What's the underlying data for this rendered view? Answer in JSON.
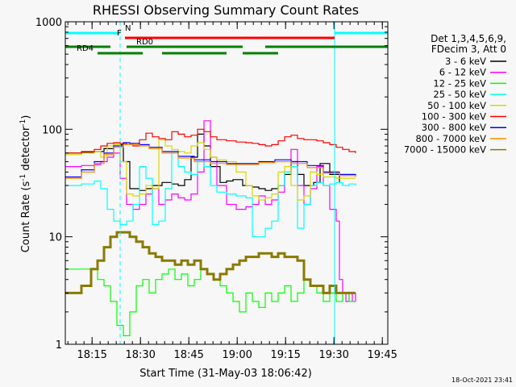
{
  "chart_data": {
    "type": "line",
    "title": "RHESSI Observing Summary Count Rates",
    "xlabel": "Start Time (31-May-03 18:06:42)",
    "ylabel": "Count Rate (s",
    "ylabel_sup": "-1",
    "ylabel_tail": " detector",
    "ylabel_close": ")",
    "y_scale": "log",
    "ylim": [
      1,
      1000
    ],
    "xlim_minutes": [
      0,
      100
    ],
    "y_ticks": [
      {
        "value": 1,
        "label": "1"
      },
      {
        "value": 10,
        "label": "10"
      },
      {
        "value": 100,
        "label": "100"
      },
      {
        "value": 1000,
        "label": "1000"
      }
    ],
    "x_ticks": [
      {
        "minute": 8.3,
        "label": "18:15"
      },
      {
        "minute": 23.3,
        "label": "18:30"
      },
      {
        "minute": 38.3,
        "label": "18:45"
      },
      {
        "minute": 53.3,
        "label": "19:00"
      },
      {
        "minute": 68.3,
        "label": "19:15"
      },
      {
        "minute": 83.3,
        "label": "19:30"
      },
      {
        "minute": 98.3,
        "label": "19:45"
      }
    ],
    "legend_header": [
      "Det 1,3,4,5,6,9,",
      "FDecim 3, Att 0"
    ],
    "legend_position": "right",
    "series": [
      {
        "name": "3 - 6 keV",
        "color": "#000000",
        "x": [
          0,
          5,
          9,
          12,
          15,
          18,
          20,
          23,
          25,
          27,
          30,
          33,
          35,
          37,
          39,
          41,
          43,
          45,
          48,
          50,
          52,
          55,
          58,
          60,
          62,
          64,
          66,
          68,
          70,
          72,
          74,
          77,
          79,
          82,
          85
        ],
        "y": [
          60,
          61,
          62,
          66,
          72,
          50,
          28,
          27,
          28,
          30,
          32,
          31,
          30,
          34,
          55,
          90,
          70,
          45,
          32,
          33,
          34,
          30,
          29,
          28,
          27,
          28,
          30,
          38,
          50,
          38,
          30,
          32,
          48,
          38,
          32
        ]
      },
      {
        "name": "6 - 12 keV",
        "color": "#ff00ff",
        "x": [
          0,
          5,
          9,
          11,
          13,
          15,
          17,
          19,
          21,
          23,
          25,
          27,
          29,
          31,
          33,
          35,
          37,
          39,
          41,
          43,
          45,
          47,
          50,
          53,
          56,
          58,
          60,
          62,
          64,
          66,
          68,
          70,
          72,
          74,
          76,
          78,
          80,
          82,
          84,
          85,
          86,
          87,
          88,
          89,
          90
        ],
        "y": [
          45,
          46,
          47,
          50,
          55,
          60,
          35,
          20,
          18,
          20,
          25,
          28,
          20,
          22,
          25,
          23,
          22,
          25,
          40,
          120,
          55,
          30,
          20,
          18,
          19,
          20,
          24,
          20,
          22,
          26,
          40,
          65,
          30,
          20,
          28,
          45,
          30,
          18,
          14,
          4,
          3,
          2.5,
          3,
          2.5,
          3
        ]
      },
      {
        "name": "12 - 25 keV",
        "color": "#00ff00",
        "x": [
          0,
          5,
          10,
          12,
          14,
          16,
          18,
          20,
          22,
          24,
          26,
          28,
          30,
          32,
          34,
          36,
          38,
          40,
          42,
          44,
          46,
          48,
          50,
          52,
          54,
          56,
          58,
          60,
          62,
          64,
          66,
          68,
          70,
          72,
          74,
          76,
          78,
          80,
          82,
          84,
          86,
          88,
          90
        ],
        "y": [
          5,
          5,
          4,
          3.5,
          2.5,
          1.5,
          1.2,
          2,
          3.5,
          4,
          3,
          4,
          4.5,
          5,
          4,
          4.5,
          3.5,
          4,
          5,
          4.5,
          4,
          3.5,
          3,
          2.5,
          2,
          3,
          2.5,
          2.2,
          3,
          2.5,
          3,
          3.5,
          2.5,
          3,
          4,
          3.5,
          3,
          2.5,
          3,
          2.5,
          3,
          2.5,
          2.5
        ]
      },
      {
        "name": "25 - 50 keV",
        "color": "#00ffff",
        "x": [
          0,
          5,
          9,
          11,
          13,
          15,
          17,
          19,
          21,
          23,
          25,
          27,
          29,
          31,
          33,
          35,
          37,
          39,
          41,
          43,
          45,
          47,
          50,
          53,
          56,
          58,
          60,
          62,
          64,
          66,
          68,
          70,
          72,
          74,
          76,
          78,
          80,
          82,
          84,
          86,
          88,
          90
        ],
        "y": [
          30,
          31,
          33,
          28,
          18,
          14,
          13,
          14,
          20,
          45,
          35,
          13,
          14,
          28,
          60,
          45,
          40,
          38,
          50,
          45,
          30,
          26,
          25,
          24,
          23,
          10,
          10,
          12,
          14,
          30,
          40,
          45,
          12,
          20,
          30,
          32,
          30,
          31,
          32,
          30,
          31,
          30
        ]
      },
      {
        "name": "50 - 100 keV",
        "color": "#d8d800",
        "x": [
          0,
          5,
          9,
          11,
          13,
          15,
          17,
          19,
          21,
          23,
          25,
          27,
          29,
          31,
          33,
          35,
          37,
          39,
          41,
          43,
          45,
          47,
          50,
          53,
          56,
          58,
          60,
          62,
          64,
          66,
          68,
          70,
          72,
          74,
          76,
          78,
          80,
          82,
          84,
          86,
          88,
          90
        ],
        "y": [
          58,
          60,
          62,
          55,
          70,
          72,
          50,
          25,
          24,
          25,
          30,
          28,
          80,
          70,
          65,
          62,
          60,
          70,
          75,
          65,
          55,
          52,
          50,
          40,
          30,
          24,
          22,
          23,
          25,
          40,
          45,
          30,
          22,
          24,
          40,
          38,
          36,
          36,
          35,
          35,
          35,
          35
        ]
      },
      {
        "name": "100 - 300 keV",
        "color": "#ff0000",
        "x": [
          0,
          5,
          9,
          11,
          13,
          15,
          17,
          19,
          21,
          23,
          25,
          27,
          29,
          31,
          33,
          35,
          37,
          39,
          41,
          43,
          45,
          47,
          50,
          53,
          56,
          58,
          60,
          62,
          64,
          66,
          68,
          70,
          72,
          74,
          76,
          78,
          80,
          82,
          84,
          86,
          88,
          90
        ],
        "y": [
          60,
          62,
          65,
          70,
          74,
          75,
          74,
          72,
          70,
          80,
          92,
          85,
          82,
          80,
          95,
          90,
          85,
          88,
          100,
          95,
          85,
          80,
          78,
          76,
          75,
          74,
          72,
          70,
          72,
          78,
          85,
          88,
          82,
          80,
          80,
          78,
          75,
          72,
          68,
          65,
          62,
          60
        ]
      },
      {
        "name": "300 - 800 keV",
        "color": "#0000ff",
        "x": [
          0,
          5,
          9,
          12,
          15,
          18,
          20,
          23,
          26,
          30,
          35,
          40,
          45,
          50,
          55,
          60,
          65,
          70,
          75,
          80,
          85,
          90
        ],
        "y": [
          36,
          42,
          50,
          60,
          70,
          75,
          74,
          72,
          68,
          62,
          56,
          52,
          50,
          48,
          48,
          50,
          52,
          50,
          46,
          40,
          38,
          37
        ]
      },
      {
        "name": "800 - 7000 keV",
        "color": "#ff8c00",
        "x": [
          0,
          5,
          9,
          12,
          15,
          18,
          20,
          23,
          26,
          30,
          35,
          40,
          45,
          50,
          55,
          60,
          65,
          70,
          75,
          80,
          85,
          90
        ],
        "y": [
          35,
          40,
          48,
          58,
          68,
          72,
          72,
          70,
          66,
          60,
          54,
          50,
          48,
          47,
          47,
          49,
          50,
          48,
          44,
          39,
          37,
          36
        ]
      },
      {
        "name": "7000 - 15000 keV",
        "color": "#8a7a00",
        "x": [
          0,
          5,
          8,
          10,
          12,
          14,
          16,
          18,
          20,
          22,
          24,
          26,
          28,
          30,
          32,
          34,
          36,
          38,
          40,
          42,
          44,
          46,
          48,
          50,
          52,
          54,
          56,
          58,
          60,
          62,
          64,
          66,
          68,
          70,
          72,
          74,
          76,
          78,
          80,
          82,
          84,
          86,
          88,
          90
        ],
        "y": [
          3,
          3.5,
          5,
          6,
          8,
          10,
          11,
          11,
          10,
          9,
          8,
          7,
          6.5,
          6,
          6,
          5.5,
          6,
          5.5,
          6,
          5,
          4.5,
          4,
          4.5,
          5,
          5.5,
          6,
          6.5,
          6.5,
          7,
          7,
          6.5,
          7,
          6.5,
          6.5,
          6,
          4,
          3.5,
          3.5,
          3,
          3.5,
          3,
          3,
          3,
          3
        ]
      }
    ],
    "bars": [
      {
        "label": "N",
        "color": "#00ffff",
        "segments": [
          [
            0,
            17
          ],
          [
            83.5,
            100
          ]
        ]
      },
      {
        "label": "F",
        "color": "#ff0000",
        "segments": [
          [
            18.5,
            83.5
          ]
        ]
      },
      {
        "label": "RD0",
        "color": "#008000",
        "segments": [
          [
            0,
            14
          ],
          [
            19,
            55
          ],
          [
            62,
            100
          ]
        ]
      },
      {
        "label": "RD4",
        "color": "#008000",
        "segments": [
          [
            10,
            24
          ],
          [
            30,
            50
          ],
          [
            55,
            66
          ]
        ]
      }
    ],
    "vlines": [
      {
        "minute": 0,
        "style": "solid"
      },
      {
        "minute": 17,
        "style": "dashed"
      },
      {
        "minute": 83.5,
        "style": "solid"
      },
      {
        "minute": 100,
        "style": "dashed"
      }
    ],
    "footer": "18-Oct-2021 23:41"
  }
}
